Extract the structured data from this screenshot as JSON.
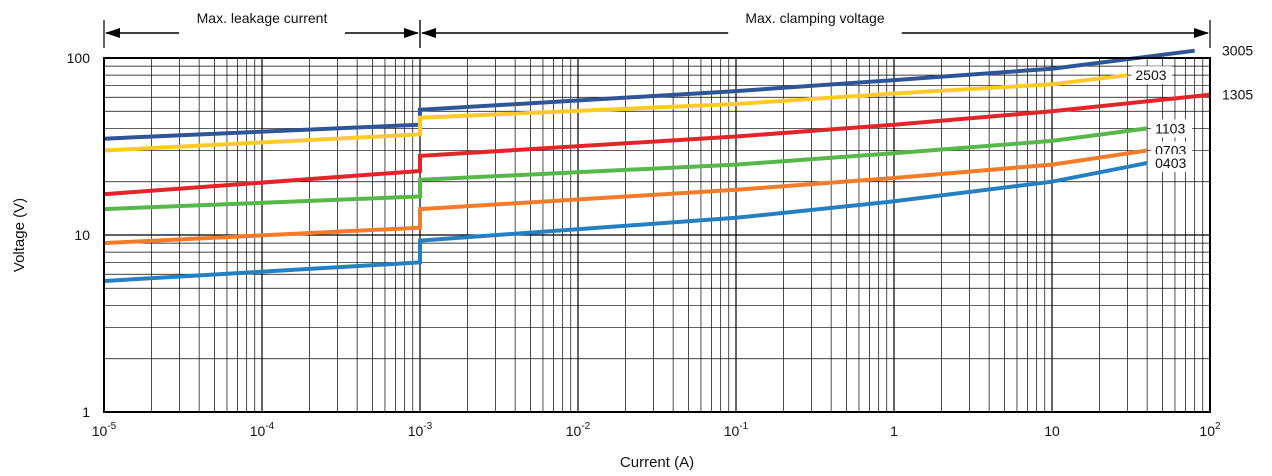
{
  "chart_data": {
    "type": "line",
    "xscale": "log",
    "yscale": "log",
    "xlim": [
      1e-05,
      100
    ],
    "ylim": [
      1,
      100
    ],
    "xlabel": "Current (A)",
    "ylabel": "Voltage (V)",
    "x_ticks": [
      {
        "value": 1e-05,
        "base": "10",
        "exp": "-5"
      },
      {
        "value": 0.0001,
        "base": "10",
        "exp": "-4"
      },
      {
        "value": 0.001,
        "base": "10",
        "exp": "-3"
      },
      {
        "value": 0.01,
        "base": "10",
        "exp": "-2"
      },
      {
        "value": 0.1,
        "base": "10",
        "exp": "-1"
      },
      {
        "value": 1,
        "base": "1",
        "exp": ""
      },
      {
        "value": 10,
        "base": "10",
        "exp": ""
      },
      {
        "value": 100,
        "base": "10",
        "exp": "2"
      }
    ],
    "y_ticks": [
      {
        "value": 1,
        "label": "1"
      },
      {
        "value": 10,
        "label": "10"
      },
      {
        "value": 100,
        "label": "100"
      }
    ],
    "grid": true,
    "regions": [
      {
        "label": "Max. leakage current",
        "from": 1e-05,
        "to": 0.001
      },
      {
        "label": "Max. clamping voltage",
        "from": 0.001,
        "to": 100
      }
    ],
    "series": [
      {
        "name": "3005",
        "color": "#2e5597",
        "points": [
          [
            1e-05,
            35
          ],
          [
            0.001,
            42
          ],
          [
            0.001,
            51
          ],
          [
            0.1,
            65
          ],
          [
            1,
            75
          ],
          [
            10,
            87
          ],
          [
            80,
            110
          ]
        ]
      },
      {
        "name": "2503",
        "color": "#ffca27",
        "points": [
          [
            1e-05,
            30
          ],
          [
            0.001,
            37
          ],
          [
            0.001,
            46
          ],
          [
            0.1,
            55
          ],
          [
            1,
            63
          ],
          [
            10,
            71
          ],
          [
            30,
            80
          ]
        ]
      },
      {
        "name": "1305",
        "color": "#e42428",
        "points": [
          [
            1e-05,
            17
          ],
          [
            0.001,
            23
          ],
          [
            0.001,
            28
          ],
          [
            0.1,
            36
          ],
          [
            1,
            42
          ],
          [
            10,
            50
          ],
          [
            100,
            62
          ]
        ]
      },
      {
        "name": "1103",
        "color": "#55b849",
        "points": [
          [
            1e-05,
            14
          ],
          [
            0.001,
            16.5
          ],
          [
            0.001,
            20.5
          ],
          [
            0.1,
            25
          ],
          [
            1,
            29
          ],
          [
            10,
            34
          ],
          [
            40,
            40
          ]
        ]
      },
      {
        "name": "0703",
        "color": "#f47b29",
        "points": [
          [
            1e-05,
            9
          ],
          [
            0.001,
            11
          ],
          [
            0.001,
            14
          ],
          [
            0.1,
            18
          ],
          [
            1,
            21
          ],
          [
            10,
            25
          ],
          [
            40,
            30
          ]
        ]
      },
      {
        "name": "0403",
        "color": "#2580c3",
        "points": [
          [
            1e-05,
            5.5
          ],
          [
            0.001,
            7
          ],
          [
            0.001,
            9.3
          ],
          [
            0.1,
            12.5
          ],
          [
            1,
            15.5
          ],
          [
            10,
            20
          ],
          [
            40,
            25.5
          ]
        ]
      }
    ]
  }
}
